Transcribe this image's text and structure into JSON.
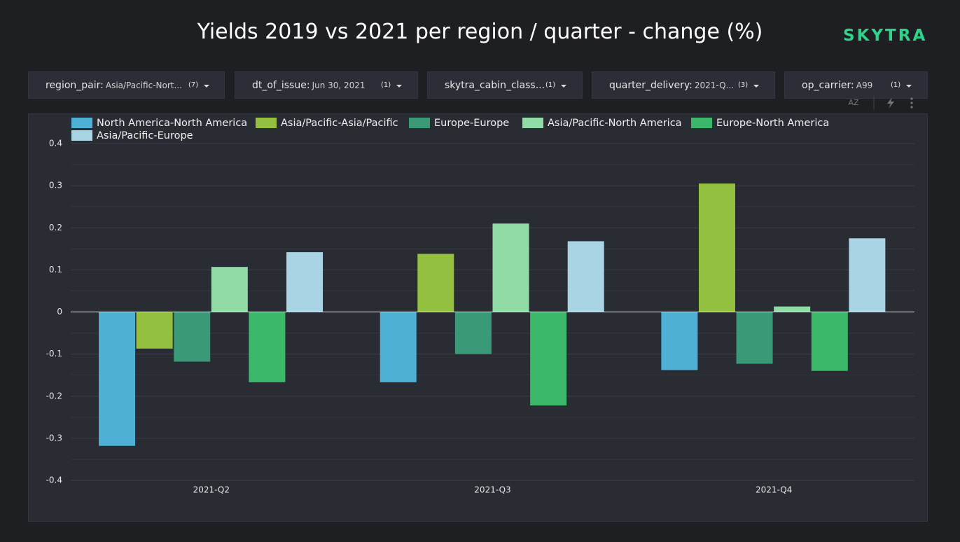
{
  "header": {
    "title": "Yields 2019 vs 2021 per region / quarter - change (%)",
    "logo": "SKYTRA"
  },
  "filters": [
    {
      "label": "region_pair:",
      "value": "Asia/Pacific-Nort...",
      "count": "(7)"
    },
    {
      "label": "dt_of_issue:",
      "value": "Jun 30, 2021",
      "count": "(1)"
    },
    {
      "label": "skytra_cabin_class...",
      "count": "(1)"
    },
    {
      "label": "quarter_delivery:",
      "value": "2021-Q...",
      "count": "(3)"
    },
    {
      "label": "op_carrier:",
      "value": "A99",
      "count": "(1)"
    }
  ],
  "toolbar": {
    "sort": "AZ"
  },
  "chart_data": {
    "type": "bar",
    "categories": [
      "2021-Q2",
      "2021-Q3",
      "2021-Q4"
    ],
    "series": [
      {
        "name": "North America-North America",
        "color": "#4fb0d6",
        "values": [
          -0.318,
          -0.167,
          -0.138
        ]
      },
      {
        "name": "Asia/Pacific-Asia/Pacific",
        "color": "#93c13f",
        "values": [
          -0.087,
          0.138,
          0.305
        ]
      },
      {
        "name": "Europe-Europe",
        "color": "#3a9a78",
        "values": [
          -0.118,
          -0.1,
          -0.123
        ]
      },
      {
        "name": "Asia/Pacific-North America",
        "color": "#90dba6",
        "values": [
          0.107,
          0.21,
          0.013
        ]
      },
      {
        "name": "Europe-North America",
        "color": "#3bb86a",
        "values": [
          -0.167,
          -0.222,
          -0.14
        ]
      },
      {
        "name": "Asia/Pacific-Europe",
        "color": "#a9d4e4",
        "values": [
          0.142,
          0.168,
          0.175
        ]
      }
    ],
    "ylim": [
      -0.4,
      0.4
    ],
    "yticks": [
      -0.4,
      -0.3,
      -0.2,
      -0.1,
      0,
      0.1,
      0.2,
      0.3,
      0.4
    ],
    "grid": true
  }
}
